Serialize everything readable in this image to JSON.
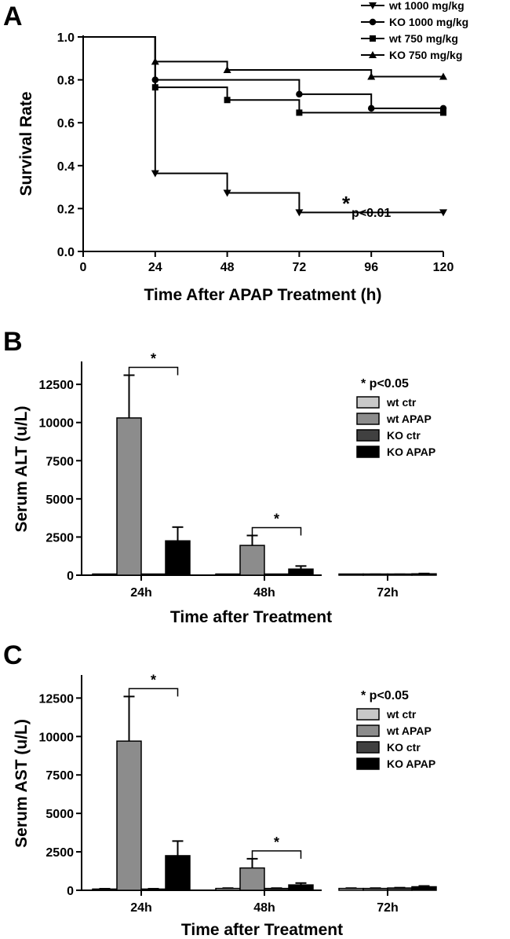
{
  "chart_data": [
    {
      "panel": "A",
      "type": "line",
      "step": true,
      "xlabel": "Time After APAP Treatment (h)",
      "ylabel": "Survival Rate",
      "xlim": [
        0,
        120
      ],
      "ylim": [
        0.0,
        1.0
      ],
      "xticks": [
        "0",
        "24",
        "48",
        "72",
        "96",
        "120"
      ],
      "yticks": [
        "0.0",
        "0.2",
        "0.4",
        "0.6",
        "0.8",
        "1.0"
      ],
      "legend_position": "top-right",
      "series": [
        {
          "name": "wt 1000 mg/kg",
          "marker": "triangle-down",
          "x": [
            0,
            24,
            48,
            72,
            120
          ],
          "y": [
            1.0,
            0.364,
            0.273,
            0.182,
            0.182
          ]
        },
        {
          "name": "KO 1000 mg/kg",
          "marker": "circle",
          "x": [
            0,
            24,
            72,
            96,
            120
          ],
          "y": [
            1.0,
            0.8,
            0.733,
            0.667,
            0.667
          ]
        },
        {
          "name": "wt 750 mg/kg",
          "marker": "square",
          "x": [
            0,
            24,
            48,
            72,
            120
          ],
          "y": [
            1.0,
            0.765,
            0.706,
            0.647,
            0.647
          ]
        },
        {
          "name": "KO 750 mg/kg",
          "marker": "triangle-up",
          "x": [
            0,
            24,
            48,
            96,
            120
          ],
          "y": [
            1.0,
            0.885,
            0.846,
            0.815,
            0.815
          ]
        }
      ],
      "annotations": [
        {
          "star": "*",
          "text": "p<0.01"
        }
      ]
    },
    {
      "panel": "B",
      "type": "bar",
      "xlabel": "Time after Treatment",
      "ylabel": "Serum ALT (u/L)",
      "categories": [
        "24h",
        "48h",
        "72h"
      ],
      "ylim": [
        0,
        14000
      ],
      "yticks": [
        "0",
        "2500",
        "5000",
        "7500",
        "10000",
        "12500"
      ],
      "legend_title": "*  p<0.05",
      "legend_position": "right",
      "series": [
        {
          "name": "wt ctr",
          "color": "#c8c8c8",
          "values": [
            40,
            40,
            40
          ],
          "errors": [
            10,
            10,
            10
          ]
        },
        {
          "name": "wt APAP",
          "color": "#8c8c8c",
          "values": [
            10300,
            1950,
            40
          ],
          "errors": [
            2800,
            650,
            20
          ]
        },
        {
          "name": "KO ctr",
          "color": "#404040",
          "values": [
            40,
            40,
            50
          ],
          "errors": [
            10,
            10,
            10
          ]
        },
        {
          "name": "KO APAP",
          "color": "#000000",
          "values": [
            2250,
            400,
            90
          ],
          "errors": [
            900,
            200,
            20
          ]
        }
      ],
      "significance": [
        {
          "category": "24h",
          "between": [
            "wt APAP",
            "KO APAP"
          ],
          "label": "*"
        },
        {
          "category": "48h",
          "between": [
            "wt APAP",
            "KO APAP"
          ],
          "label": "*"
        }
      ]
    },
    {
      "panel": "C",
      "type": "bar",
      "xlabel": "Time after Treatment",
      "ylabel": "Serum AST (u/L)",
      "categories": [
        "24h",
        "48h",
        "72h"
      ],
      "ylim": [
        0,
        14000
      ],
      "yticks": [
        "0",
        "2500",
        "5000",
        "7500",
        "10000",
        "12500"
      ],
      "legend_title": "*  p<0.05",
      "legend_position": "right",
      "series": [
        {
          "name": "wt ctr",
          "color": "#c8c8c8",
          "values": [
            80,
            120,
            120
          ],
          "errors": [
            20,
            20,
            20
          ]
        },
        {
          "name": "wt APAP",
          "color": "#8c8c8c",
          "values": [
            9700,
            1450,
            120
          ],
          "errors": [
            2900,
            600,
            20
          ]
        },
        {
          "name": "KO ctr",
          "color": "#404040",
          "values": [
            80,
            120,
            150
          ],
          "errors": [
            20,
            20,
            20
          ]
        },
        {
          "name": "KO APAP",
          "color": "#000000",
          "values": [
            2250,
            350,
            230
          ],
          "errors": [
            950,
            120,
            50
          ]
        }
      ],
      "significance": [
        {
          "category": "24h",
          "between": [
            "wt APAP",
            "KO APAP"
          ],
          "label": "*"
        },
        {
          "category": "48h",
          "between": [
            "wt APAP",
            "KO APAP"
          ],
          "label": "*"
        }
      ]
    }
  ]
}
